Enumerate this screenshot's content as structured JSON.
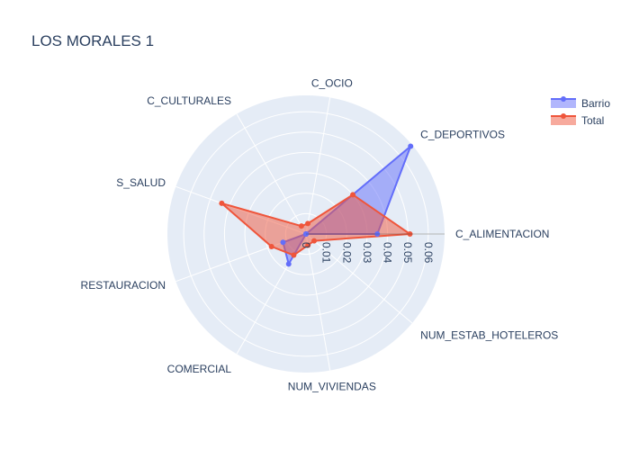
{
  "chart_data": {
    "type": "radar",
    "title": "LOS MORALES 1",
    "categories": [
      "C_ALIMENTACION",
      "C_DEPORTIVOS",
      "C_OCIO",
      "C_CULTURALES",
      "S_SALUD",
      "RESTAURACION",
      "COMERCIAL",
      "NUM_VIVIENDAS",
      "NUM_ESTAB_HOTELEROS"
    ],
    "radial_ticks": [
      "0",
      "0.01",
      "0.02",
      "0.03",
      "0.04",
      "0.05",
      "0.06"
    ],
    "radial_range": [
      0,
      0.068
    ],
    "legend_position": "top-right",
    "grid": true,
    "series": [
      {
        "name": "Barrio",
        "color": "#636efa",
        "values": [
          0.035,
          0.067,
          0,
          0,
          0,
          0.012,
          0.017,
          0,
          0
        ]
      },
      {
        "name": "Total",
        "color": "#ef553b",
        "values": [
          0.051,
          0.03,
          0.0052,
          0.0045,
          0.044,
          0.018,
          0.012,
          0.0056,
          0.0052
        ]
      }
    ]
  }
}
